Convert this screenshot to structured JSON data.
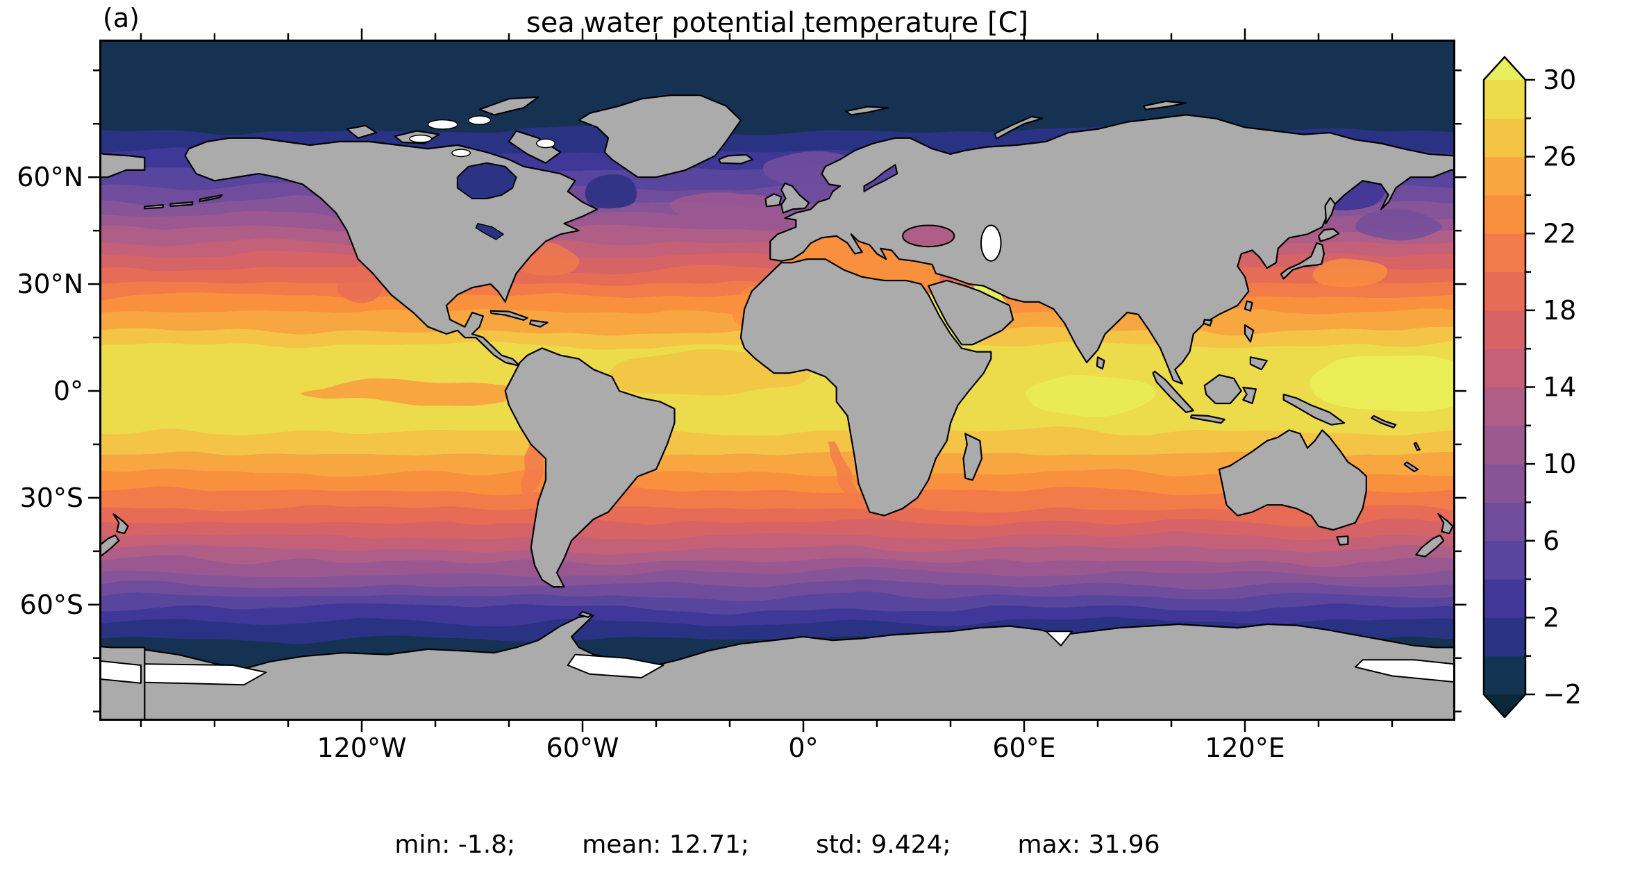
{
  "panel_label": "(a)",
  "title": "sea water potential temperature [C]",
  "stats": {
    "min": "min: -1.8;",
    "mean": "mean: 12.71;",
    "std": "std: 9.424;",
    "max": "max: 31.96"
  },
  "x_axis": {
    "tick_labels": [
      "120°W",
      "60°W",
      "0°",
      "60°E",
      "120°E"
    ],
    "tick_lons": [
      -120,
      -60,
      0,
      60,
      120
    ],
    "minor_tick_lons": [
      -180,
      -160,
      -140,
      -100,
      -80,
      -40,
      -20,
      20,
      40,
      80,
      100,
      140,
      160
    ]
  },
  "y_axis": {
    "tick_labels": [
      "60°N",
      "30°N",
      "0°",
      "30°S",
      "60°S"
    ],
    "tick_lats": [
      60,
      30,
      0,
      -30,
      -60
    ],
    "minor_tick_lats": [
      90,
      75,
      45,
      15,
      -15,
      -45,
      -75,
      -90
    ]
  },
  "colorbar": {
    "tick_labels": [
      "30",
      "26",
      "22",
      "18",
      "14",
      "10",
      "6",
      "2",
      "−2"
    ],
    "tick_values": [
      30,
      26,
      22,
      18,
      14,
      10,
      6,
      2,
      -2
    ],
    "minor_tick_values": [
      28,
      24,
      20,
      16,
      12,
      8,
      4,
      0
    ],
    "levels": [
      -2,
      0,
      2,
      4,
      6,
      8,
      10,
      12,
      14,
      16,
      18,
      20,
      22,
      24,
      26,
      28,
      30
    ],
    "segment_colors": [
      "#133353",
      "#2b3384",
      "#413798",
      "#59449e",
      "#704d9c",
      "#865497",
      "#9b5990",
      "#af5e87",
      "#c46078",
      "#d66366",
      "#e76c55",
      "#f37a4a",
      "#f9903e",
      "#f8a63f",
      "#f3c444",
      "#ecdc4b"
    ],
    "over_color": "#e7f05c",
    "under_color": "#0c2838",
    "extend": "both"
  },
  "map": {
    "land_color": "#ababab",
    "coast_color": "#000000",
    "no_data_color": "#ffffff",
    "background_color": "#ffffff"
  },
  "chart_data": {
    "type": "heatmap",
    "title": "sea water potential temperature [C]",
    "units": "C",
    "projection": "equirectangular world map (lon -180..180, lat -90..90)",
    "x_tick_labels": [
      "120°W",
      "60°W",
      "0°",
      "60°E",
      "120°E"
    ],
    "y_tick_labels": [
      "60°N",
      "30°N",
      "0°",
      "30°S",
      "60°S"
    ],
    "colorbar_levels": [
      -2,
      0,
      2,
      4,
      6,
      8,
      10,
      12,
      14,
      16,
      18,
      20,
      22,
      24,
      26,
      28,
      30
    ],
    "colorbar_extend": "both",
    "colormap": "thermal-like (dark navy - purple - rose - orange - yellow)",
    "stats": {
      "min": -1.8,
      "mean": 12.71,
      "std": 9.424,
      "max": 31.96
    },
    "zonal_mean_sst_estimate": [
      {
        "lat": 85,
        "t": -1.5
      },
      {
        "lat": 75,
        "t": -1.0
      },
      {
        "lat": 65,
        "t": 1.0
      },
      {
        "lat": 60,
        "t": 3.0
      },
      {
        "lat": 55,
        "t": 5.0
      },
      {
        "lat": 50,
        "t": 7.5
      },
      {
        "lat": 45,
        "t": 10.0
      },
      {
        "lat": 40,
        "t": 13.5
      },
      {
        "lat": 35,
        "t": 17.0
      },
      {
        "lat": 30,
        "t": 20.5
      },
      {
        "lat": 25,
        "t": 23.5
      },
      {
        "lat": 20,
        "t": 25.5
      },
      {
        "lat": 15,
        "t": 27.0
      },
      {
        "lat": 10,
        "t": 28.5
      },
      {
        "lat": 0,
        "t": 28.5
      },
      {
        "lat": -10,
        "t": 27.5
      },
      {
        "lat": -15,
        "t": 26.0
      },
      {
        "lat": -20,
        "t": 24.0
      },
      {
        "lat": -25,
        "t": 22.0
      },
      {
        "lat": -30,
        "t": 19.5
      },
      {
        "lat": -35,
        "t": 16.5
      },
      {
        "lat": -40,
        "t": 13.0
      },
      {
        "lat": -45,
        "t": 10.0
      },
      {
        "lat": -50,
        "t": 7.0
      },
      {
        "lat": -55,
        "t": 4.0
      },
      {
        "lat": -60,
        "t": 1.5
      },
      {
        "lat": -65,
        "t": -0.5
      },
      {
        "lat": -70,
        "t": -1.5
      }
    ],
    "notable_features": [
      "warm pool yellow (28-30C) across tropical Indian Ocean and western Pacific",
      "equatorial Pacific cold tongue (24-26C) extending west from South America",
      "Mediterranean Sea orange (~22C), Red Sea and Persian Gulf bright yellow (>30C)",
      "North Atlantic isotherms tilt northeast toward Norway",
      "Hudson Bay, Labrador Sea, Sea of Okhotsk cold (0-2C)",
      "Southern Ocean dark band poleward of 55S; Antarctica gray with white ice shelves",
      "Caspian Sea shown white (no data)"
    ]
  }
}
